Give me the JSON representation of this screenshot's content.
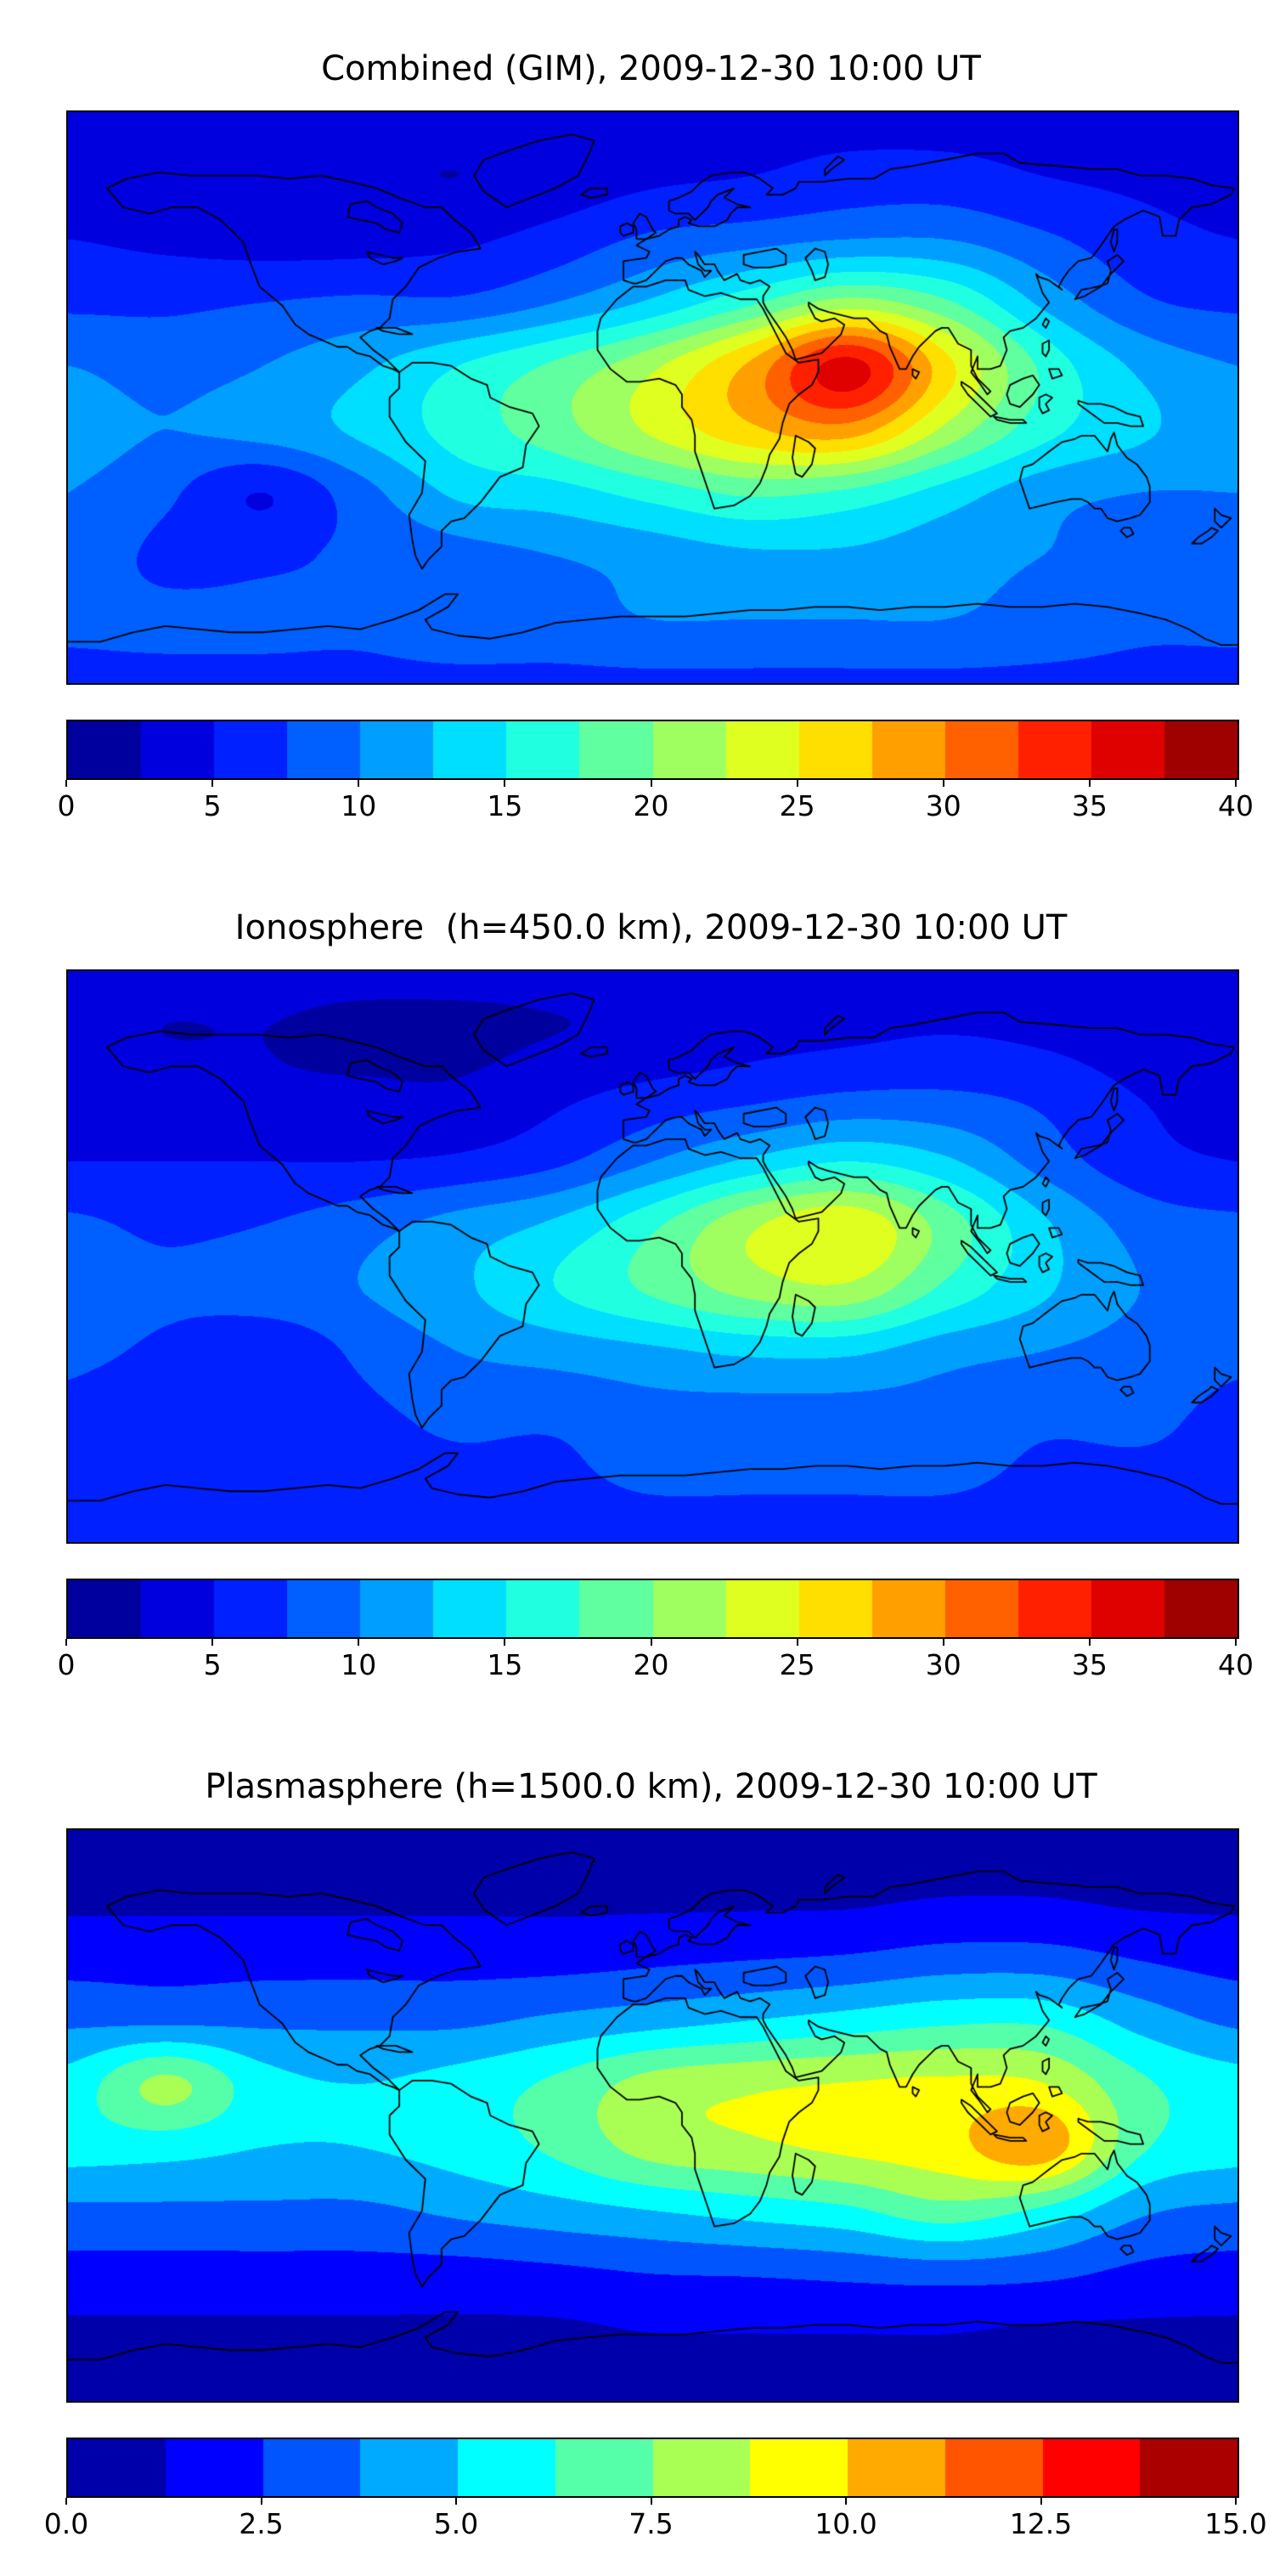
{
  "figure": {
    "panels": [
      {
        "id": "combined",
        "title": "Combined (GIM), 2009-12-30 10:00 UT"
      },
      {
        "id": "ionosphere",
        "title": "Ionosphere  (h=450.0 km), 2009-12-30 10:00 UT"
      },
      {
        "id": "plasmasphere",
        "title": "Plasmasphere (h=1500.0 km), 2009-12-30 10:00 UT"
      }
    ]
  },
  "chart_data": [
    {
      "type": "heatmap",
      "title": "Combined (GIM), 2009-12-30 10:00 UT",
      "projection": "equirectangular",
      "xlabel": "longitude_deg",
      "ylabel": "latitude_deg",
      "xlim": [
        -180,
        180
      ],
      "ylim": [
        -90,
        90
      ],
      "colormap": "jet",
      "vmin": 0,
      "vmax": 40,
      "level_step": 2.5,
      "colorbar_ticks": [
        0,
        5,
        10,
        15,
        20,
        25,
        30,
        35,
        40
      ],
      "colorbar_tick_labels": [
        "0",
        "5",
        "10",
        "15",
        "20",
        "25",
        "30",
        "35",
        "40"
      ],
      "grid_lons": [
        -180,
        -150,
        -120,
        -90,
        -60,
        -30,
        0,
        30,
        60,
        90,
        120,
        150,
        180
      ],
      "grid_lats": [
        90,
        70,
        50,
        30,
        10,
        -10,
        -30,
        -50,
        -70,
        -90
      ],
      "values": [
        [
          4,
          4,
          4,
          4,
          4,
          4,
          4,
          4,
          4,
          4,
          4,
          4,
          4
        ],
        [
          4,
          4,
          3.5,
          3,
          2.5,
          3.5,
          4.5,
          5,
          6,
          6,
          5,
          4.5,
          4
        ],
        [
          5,
          4.5,
          4,
          4,
          4.5,
          6,
          8,
          9,
          10,
          10,
          8,
          6,
          5
        ],
        [
          7,
          7,
          7.5,
          8,
          8,
          10,
          13,
          17,
          21,
          18,
          12,
          8,
          7
        ],
        [
          10,
          9,
          10,
          12,
          15,
          18,
          22,
          28,
          36,
          26,
          17,
          12,
          10
        ],
        [
          11,
          10,
          11,
          13,
          16,
          19,
          23,
          27,
          29,
          22,
          16,
          13,
          11
        ],
        [
          10,
          8,
          5,
          9,
          13,
          14,
          16,
          18,
          17,
          14,
          11,
          10,
          10
        ],
        [
          9,
          7,
          7,
          8,
          9,
          10,
          11,
          12,
          12,
          11,
          10,
          9,
          9
        ],
        [
          8,
          8,
          8,
          8,
          9,
          9,
          10,
          10,
          10,
          10,
          9,
          8,
          8
        ],
        [
          7,
          7,
          7,
          7,
          7,
          7,
          7,
          7,
          7,
          7,
          7,
          7,
          7
        ]
      ]
    },
    {
      "type": "heatmap",
      "title": "Ionosphere  (h=450.0 km), 2009-12-30 10:00 UT",
      "projection": "equirectangular",
      "xlabel": "longitude_deg",
      "ylabel": "latitude_deg",
      "xlim": [
        -180,
        180
      ],
      "ylim": [
        -90,
        90
      ],
      "colormap": "jet",
      "vmin": 0,
      "vmax": 40,
      "level_step": 2.5,
      "colorbar_ticks": [
        0,
        5,
        10,
        15,
        20,
        25,
        30,
        35,
        40
      ],
      "colorbar_tick_labels": [
        "0",
        "5",
        "10",
        "15",
        "20",
        "25",
        "30",
        "35",
        "40"
      ],
      "grid_lons": [
        -180,
        -150,
        -120,
        -90,
        -60,
        -30,
        0,
        30,
        60,
        90,
        120,
        150,
        180
      ],
      "grid_lats": [
        90,
        70,
        50,
        30,
        10,
        -10,
        -30,
        -50,
        -70,
        -90
      ],
      "values": [
        [
          3,
          3,
          3,
          3,
          3,
          3,
          3,
          3,
          3,
          3,
          3,
          3,
          3
        ],
        [
          3,
          2.5,
          2.5,
          2,
          2,
          2.5,
          3,
          4,
          4.5,
          5,
          4.5,
          3.5,
          3
        ],
        [
          4,
          3.5,
          3,
          3,
          3,
          4.5,
          6,
          7,
          8,
          8,
          7,
          5,
          4
        ],
        [
          5,
          5,
          5,
          5,
          5.5,
          7,
          10,
          13,
          15,
          13,
          9,
          6,
          5
        ],
        [
          8,
          7,
          7.5,
          9,
          11,
          13,
          17,
          22,
          24.5,
          19,
          13,
          9,
          8
        ],
        [
          9,
          8,
          9,
          10,
          12,
          15,
          18,
          21,
          22,
          17,
          13,
          10,
          9
        ],
        [
          8,
          7,
          5.5,
          8,
          10,
          11,
          12,
          13,
          13,
          11,
          10,
          9,
          8
        ],
        [
          7,
          6,
          6,
          7,
          8,
          8,
          9,
          9,
          9,
          9,
          8,
          8,
          7
        ],
        [
          7,
          7,
          7,
          7,
          7,
          7,
          8,
          8,
          8,
          8,
          7,
          7,
          7
        ],
        [
          6,
          6,
          6,
          6,
          6,
          6,
          6,
          6,
          6,
          6,
          6,
          6,
          6
        ]
      ]
    },
    {
      "type": "heatmap",
      "title": "Plasmasphere (h=1500.0 km), 2009-12-30 10:00 UT",
      "projection": "equirectangular",
      "xlabel": "longitude_deg",
      "ylabel": "latitude_deg",
      "xlim": [
        -180,
        180
      ],
      "ylim": [
        -90,
        90
      ],
      "colormap": "jet",
      "vmin": 0,
      "vmax": 15,
      "level_step": 1.25,
      "colorbar_ticks": [
        0,
        2.5,
        5,
        7.5,
        10,
        12.5,
        15
      ],
      "colorbar_tick_labels": [
        "0.0",
        "2.5",
        "5.0",
        "7.5",
        "10.0",
        "12.5",
        "15.0"
      ],
      "grid_lons": [
        -180,
        -150,
        -120,
        -90,
        -60,
        -30,
        0,
        30,
        60,
        90,
        120,
        150,
        180
      ],
      "grid_lats": [
        90,
        70,
        50,
        30,
        10,
        -10,
        -30,
        -50,
        -70,
        -90
      ],
      "values": [
        [
          1,
          1,
          1,
          1,
          1,
          1,
          1,
          1,
          1,
          1,
          1,
          1,
          1
        ],
        [
          1,
          1,
          1,
          1,
          1,
          1,
          1,
          1,
          1,
          1.2,
          1.2,
          1,
          1
        ],
        [
          2,
          2,
          2,
          2,
          2,
          2,
          2.2,
          2.4,
          2.6,
          3,
          3,
          2.4,
          2
        ],
        [
          3.5,
          3.5,
          3.5,
          3.5,
          3.5,
          4,
          4.5,
          5,
          5.5,
          6,
          6,
          4.5,
          3.5
        ],
        [
          5.5,
          7.8,
          5.5,
          5,
          5.5,
          6.5,
          8,
          8.5,
          8.8,
          9,
          8.8,
          6.5,
          5.5
        ],
        [
          5.5,
          5.5,
          5,
          5,
          5.5,
          6.5,
          8,
          8.5,
          9,
          9.5,
          10.8,
          6.5,
          5.5
        ],
        [
          3.5,
          3.5,
          3.5,
          3.5,
          4,
          4.5,
          5,
          5.5,
          6,
          7,
          6,
          4,
          3.5
        ],
        [
          2,
          2,
          2,
          2,
          2,
          2.2,
          2.5,
          2.6,
          2.8,
          3,
          2.8,
          2.2,
          2
        ],
        [
          1,
          1,
          1,
          1,
          1,
          1,
          1.2,
          1.2,
          1.2,
          1.2,
          1,
          1,
          1
        ],
        [
          1,
          1,
          1,
          1,
          1,
          1,
          1,
          1,
          1,
          1,
          1,
          1,
          1
        ]
      ]
    }
  ]
}
